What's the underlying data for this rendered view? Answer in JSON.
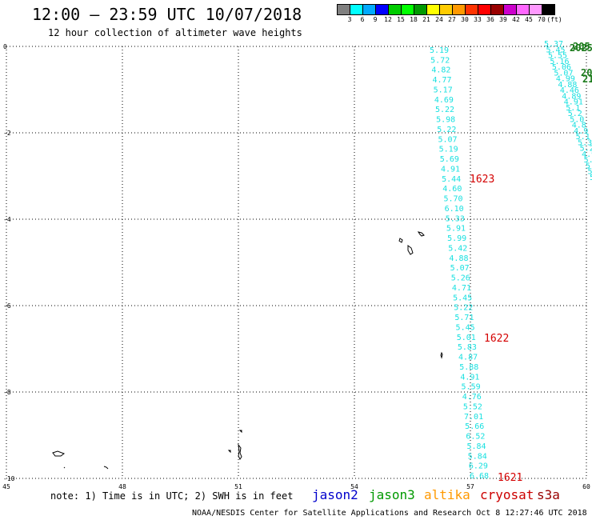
{
  "header": {
    "title": "12:00 – 23:59 UTC 10/07/2018",
    "subtitle": "12 hour collection of altimeter wave heights"
  },
  "colorbar": {
    "colors": [
      "#808080",
      "#00ffff",
      "#00aaff",
      "#0000ff",
      "#00cc00",
      "#00ff00",
      "#009900",
      "#ffff00",
      "#ffcc00",
      "#ff9900",
      "#ff3300",
      "#ff0000",
      "#990000",
      "#cc00cc",
      "#ff66ff",
      "#ff99ff",
      "#000000"
    ],
    "labels": [
      "3",
      "6",
      "9",
      "12",
      "15",
      "18",
      "21",
      "24",
      "27",
      "30",
      "33",
      "36",
      "39",
      "42",
      "45",
      "70",
      "(ft)"
    ]
  },
  "map": {
    "lat_range": [
      -10,
      0
    ],
    "lon_range": [
      45,
      60
    ],
    "lat_ticks": [
      "0",
      "-2",
      "-4",
      "-6",
      "-8",
      "-10"
    ],
    "lon_ticks": [
      "45",
      "48",
      "51",
      "54",
      "57",
      "60"
    ],
    "wave_color": "#19e0e0",
    "track_main": [
      "5.19",
      "5.72",
      "4.82",
      "4.77",
      "5.17",
      "4.69",
      "5.22",
      "5.98",
      "5.22",
      "5.07",
      "5.19",
      "5.69",
      "4.91",
      "5.44",
      "4.60",
      "5.70",
      "6.10",
      "5.33",
      "5.91",
      "5.99",
      "5.42",
      "4.88",
      "5.07",
      "5.26",
      "4.71",
      "5.45",
      "5.22",
      "5.71",
      "5.45",
      "5.01",
      "5.83",
      "4.87",
      "5.88",
      "4.91",
      "5.59",
      "4.76",
      "5.52",
      "7.01",
      "5.66",
      "6.52",
      "5.84",
      "5.84",
      "6.29",
      "6.68"
    ],
    "track_right": [
      "5.37",
      "5.45",
      "5.55",
      "5.16",
      "5.06",
      "5.07",
      "4.99",
      "4.88",
      "4.46",
      "4.89",
      "4.91",
      "5.1",
      "5.2",
      "5.0",
      "4.8",
      "4.9",
      "5.1",
      "5.3",
      "5.2",
      "4.9",
      "5.0",
      "5.1",
      "5.3",
      "5.2"
    ],
    "green_labels": [
      "205",
      "2025",
      "20",
      "21"
    ],
    "pass_labels": [
      "1623",
      "1622",
      "1621"
    ]
  },
  "footer": {
    "note": "note: 1) Time is in UTC; 2) SWH is in feet",
    "missions": [
      {
        "name": "jason2",
        "color": "#0000cc"
      },
      {
        "name": "jason3",
        "color": "#009900"
      },
      {
        "name": "altika",
        "color": "#ff9900"
      },
      {
        "name": "cryosat",
        "color": "#cc0000"
      },
      {
        "name": "s3a",
        "color": "#990000"
      }
    ],
    "credit": "NOAA/NESDIS Center for Satellite Applications and Research   Oct  8 12:27:46 UTC 2018"
  }
}
